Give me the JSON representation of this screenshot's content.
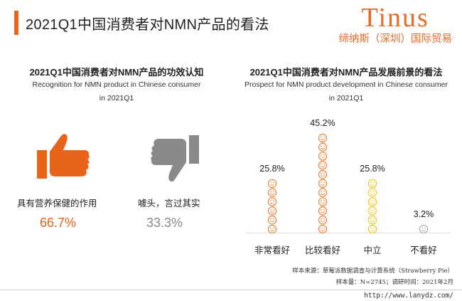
{
  "header": {
    "title": "2021Q1中国消费者对NMN产品的看法",
    "accent_color": "#e8641b",
    "brand_name": "Tinus",
    "brand_sub": "缔纳斯（深圳）国际贸易"
  },
  "left_panel": {
    "title": "2021Q1中国消费者对NMN产品的功效认知",
    "subtitle_line1": "Recognition for NMN product in Chinese consumer",
    "subtitle_line2": "in 2021Q1",
    "positive": {
      "icon": "thumbs-up-icon",
      "label": "具有营养保健的作用",
      "value": "66.7%",
      "color": "#e8641b"
    },
    "negative": {
      "icon": "thumbs-down-icon",
      "label": "噱头，言过其实",
      "value": "33.3%",
      "color": "#8a8a8a"
    }
  },
  "chart_data": [
    {
      "type": "pie",
      "title": "2021Q1中国消费者对NMN产品的功效认知",
      "subtitle": "Recognition for NMN product in Chinese consumer in 2021Q1",
      "categories": [
        "具有营养保健的作用",
        "噱头，言过其实"
      ],
      "values": [
        66.7,
        33.3
      ]
    },
    {
      "type": "bar",
      "title": "2021Q1中国消费者对NMN产品发展前景的看法",
      "subtitle_line1": "Prospect for NMN product development in Chinese consumer",
      "subtitle_line2": "in 2021Q1",
      "categories": [
        "非常看好",
        "比较看好",
        "中立",
        "不看好"
      ],
      "values": [
        25.8,
        45.2,
        25.8,
        3.2
      ],
      "value_labels": [
        "25.8%",
        "45.2%",
        "25.8%",
        "3.2%"
      ],
      "colors": [
        "#f07d2e",
        "#f07d2e",
        "#f5c518",
        "#aaaaaa"
      ],
      "ylim": [
        0,
        50
      ],
      "grid": false
    }
  ],
  "footer": {
    "line1": "样本来源：草莓派数据调查与计算系统（Strawberry Pie）",
    "line2": "样本量：N=2745；调研时间：2021年2月",
    "watermark": "http://www.lanydz.com/"
  }
}
